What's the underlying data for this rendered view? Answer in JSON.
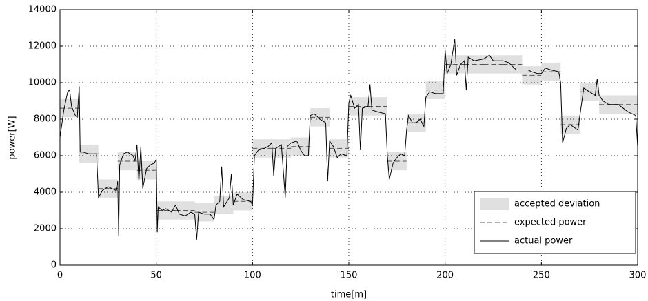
{
  "chart_data": {
    "type": "line",
    "xlabel": "time[m]",
    "ylabel": "power[W]",
    "xlim": [
      0,
      300
    ],
    "ylim": [
      0,
      14000
    ],
    "xticks": [
      0,
      50,
      100,
      150,
      200,
      250,
      300
    ],
    "yticks": [
      0,
      2000,
      4000,
      6000,
      8000,
      10000,
      12000,
      14000
    ],
    "grid": true,
    "legend": "lower right",
    "step_edges": [
      0,
      10,
      20,
      30,
      40,
      50,
      60,
      70,
      80,
      90,
      100,
      110,
      120,
      130,
      140,
      150,
      160,
      170,
      180,
      190,
      200,
      210,
      220,
      230,
      240,
      250,
      260,
      270,
      280,
      290,
      300
    ],
    "series": [
      {
        "name": "accepted deviation",
        "color": "#e0e0e0",
        "low": [
          8100,
          5600,
          3700,
          5200,
          4700,
          2500,
          2500,
          2400,
          2800,
          3000,
          5900,
          5900,
          6000,
          7600,
          5900,
          8200,
          8200,
          5200,
          7300,
          9100,
          10500,
          10500,
          10500,
          10500,
          9900,
          10100,
          7200,
          9000,
          8300,
          8300
        ],
        "high": [
          9100,
          6600,
          4700,
          6200,
          5700,
          3500,
          3500,
          3400,
          3800,
          4000,
          6900,
          6900,
          7000,
          8600,
          6900,
          9200,
          9200,
          6200,
          8300,
          10100,
          11500,
          11500,
          11500,
          11500,
          10900,
          11100,
          8200,
          10000,
          9300,
          9300
        ]
      },
      {
        "name": "expected power",
        "color": "#555555",
        "dash": true,
        "values": [
          8600,
          6100,
          4200,
          5700,
          5200,
          3000,
          3000,
          2900,
          3300,
          3500,
          6400,
          6400,
          6500,
          8100,
          6400,
          8700,
          8700,
          5700,
          7800,
          9600,
          11000,
          11000,
          11000,
          11000,
          10400,
          10600,
          7700,
          9500,
          8800,
          8800
        ]
      },
      {
        "name": "actual power",
        "color": "#000000",
        "x": [
          0,
          2,
          4,
          5,
          6,
          8,
          9,
          10,
          10.5,
          12,
          15,
          19,
          20,
          22,
          25,
          29,
          30,
          30.5,
          31,
          33,
          35,
          38,
          39,
          40,
          41,
          42,
          43,
          45,
          47,
          49,
          50,
          50.5,
          51,
          53,
          55,
          58,
          60,
          62,
          65,
          68,
          70,
          71,
          72,
          75,
          78,
          80,
          81,
          83,
          84,
          85,
          88,
          89,
          90,
          92,
          95,
          99,
          100,
          101,
          103,
          106,
          108,
          110,
          111,
          112,
          115,
          117,
          118,
          120,
          123,
          125,
          127,
          129,
          130,
          132,
          135,
          138,
          139,
          140,
          142,
          144,
          146,
          149,
          150,
          151,
          153,
          155,
          156,
          157,
          160,
          161,
          162,
          165,
          169,
          170,
          171,
          173,
          175,
          177,
          179,
          180,
          181,
          183,
          185,
          187,
          189,
          190,
          192,
          195,
          199,
          200,
          201,
          203,
          205,
          206,
          208,
          210,
          211,
          212,
          215,
          220,
          223,
          225,
          230,
          233,
          237,
          240,
          243,
          245,
          248,
          250,
          252,
          255,
          259,
          260,
          261,
          263,
          265,
          269,
          270,
          272,
          275,
          278,
          279,
          280,
          282,
          285,
          290,
          295,
          299,
          300
        ],
        "values": [
          7000,
          8500,
          9500,
          9600,
          8700,
          8200,
          8100,
          9800,
          6200,
          6200,
          6100,
          6100,
          3700,
          4100,
          4300,
          4100,
          4600,
          1600,
          5500,
          6100,
          6200,
          6000,
          5700,
          6600,
          4600,
          6500,
          4200,
          5300,
          5500,
          5600,
          5800,
          1800,
          3200,
          3000,
          3100,
          2900,
          3300,
          2800,
          2700,
          2900,
          2800,
          1400,
          2900,
          2800,
          2800,
          2500,
          3300,
          3500,
          5400,
          3200,
          3700,
          5000,
          3300,
          3900,
          3600,
          3500,
          3300,
          6000,
          6300,
          6400,
          6500,
          6700,
          4900,
          6400,
          6600,
          3700,
          6500,
          6700,
          6800,
          6300,
          6000,
          6000,
          8200,
          8300,
          8000,
          7800,
          4600,
          6800,
          6500,
          5900,
          6100,
          6000,
          8900,
          9300,
          8600,
          8800,
          6300,
          8600,
          8700,
          9900,
          8500,
          8400,
          8300,
          6000,
          4700,
          5600,
          5900,
          6100,
          6000,
          7400,
          8200,
          7800,
          7800,
          8000,
          7600,
          9200,
          9500,
          9400,
          9400,
          11800,
          10500,
          11000,
          12400,
          10400,
          11000,
          11200,
          9600,
          11400,
          11200,
          11300,
          11500,
          11200,
          11200,
          11100,
          10700,
          10700,
          10700,
          10600,
          10500,
          10500,
          10800,
          10700,
          10600,
          10000,
          6700,
          7500,
          7700,
          7400,
          8200,
          9700,
          9500,
          9300,
          10200,
          9300,
          9000,
          8800,
          8800,
          8400,
          8200,
          6500
        ]
      }
    ]
  }
}
